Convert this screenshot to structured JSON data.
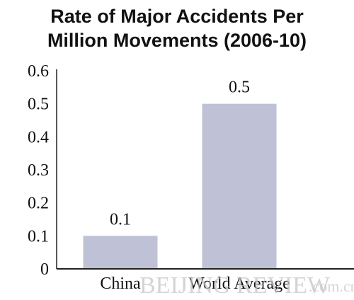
{
  "chart_data": {
    "type": "bar",
    "title_lines": [
      "Rate of Major Accidents Per",
      "Million Movements (2006-10)"
    ],
    "categories": [
      "China",
      "World Average"
    ],
    "values": [
      0.1,
      0.5
    ],
    "data_labels": [
      "0.1",
      "0.5"
    ],
    "yticks": [
      "0",
      "0.1",
      "0.2",
      "0.3",
      "0.4",
      "0.5",
      "0.6"
    ],
    "ylim": [
      0,
      0.6
    ],
    "xlabel": "",
    "ylabel": "",
    "grid": false,
    "bar_color": "#bfc1d6"
  },
  "watermark": {
    "main": "BEIJING REVIEW",
    "suffix": ".com.cn"
  }
}
